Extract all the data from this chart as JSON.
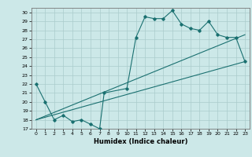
{
  "xlabel": "Humidex (Indice chaleur)",
  "ylabel": "",
  "bg_color": "#cce8e8",
  "grid_color": "#aacccc",
  "line_color": "#1a7070",
  "xlim": [
    -0.5,
    23.5
  ],
  "ylim": [
    17,
    30.5
  ],
  "yticks": [
    17,
    18,
    19,
    20,
    21,
    22,
    23,
    24,
    25,
    26,
    27,
    28,
    29,
    30
  ],
  "xticks": [
    0,
    1,
    2,
    3,
    4,
    5,
    6,
    7,
    8,
    9,
    10,
    11,
    12,
    13,
    14,
    15,
    16,
    17,
    18,
    19,
    20,
    21,
    22,
    23
  ],
  "line1_x": [
    0,
    1,
    2,
    3,
    4,
    5,
    6,
    7,
    7.5,
    10,
    11,
    12,
    13,
    14,
    15,
    16,
    17,
    18,
    19,
    20,
    21,
    22,
    23
  ],
  "line1_y": [
    22,
    20,
    18,
    18.5,
    17.8,
    18,
    17.5,
    17,
    21,
    21.5,
    27.2,
    29.5,
    29.3,
    29.3,
    30.2,
    28.7,
    28.2,
    28.0,
    29.0,
    27.5,
    27.2,
    27.2,
    24.5
  ],
  "line2_x": [
    0,
    23
  ],
  "line2_y": [
    18,
    24.5
  ],
  "line3_x": [
    0,
    23
  ],
  "line3_y": [
    18,
    27.5
  ]
}
